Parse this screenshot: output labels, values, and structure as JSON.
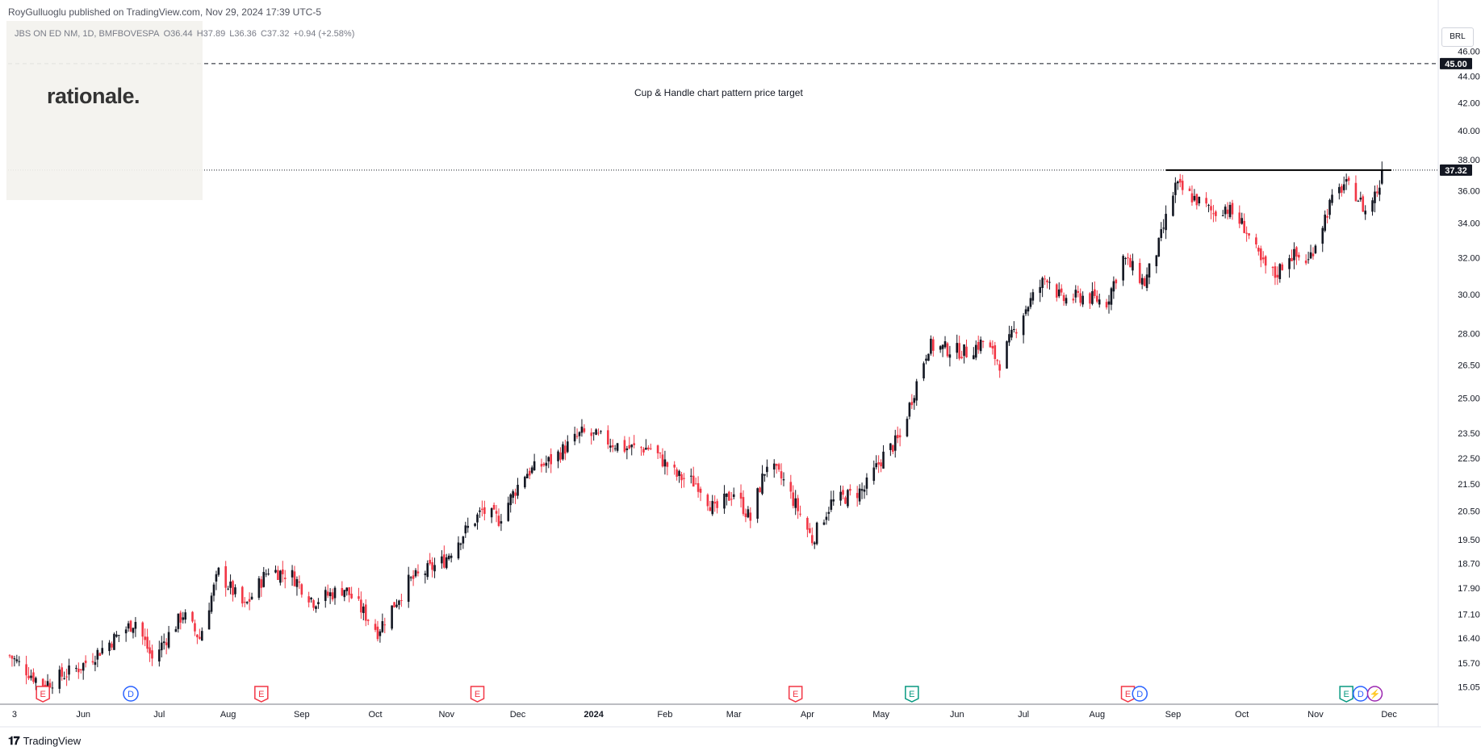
{
  "header": {
    "published": "RoyGulluoglu published on TradingView.com, Nov 29, 2024 17:39 UTC-5",
    "symbol": "JBS ON ED NM, 1D, BMFBOVESPA",
    "open": "O36.44",
    "high": "H37.89",
    "low": "L36.36",
    "close": "C37.32",
    "change": "+0.94 (+2.58%)"
  },
  "overlay": {
    "logo_text": "rationale."
  },
  "currency": "BRL",
  "annotation": "Cup & Handle chart pattern price target",
  "footer": {
    "brand": "TradingView"
  },
  "colors": {
    "up": "#131722",
    "down": "#f23645",
    "label_bg": "#131722",
    "event_earnings": "#f23645",
    "event_dividend": "#2962ff",
    "event_earnings_green": "#089981"
  },
  "chart_data": {
    "type": "candlestick",
    "y_scale": "log",
    "ylim": [
      14.6,
      48.5
    ],
    "y_ticks": [
      "15.05",
      "15.70",
      "16.40",
      "17.10",
      "17.90",
      "18.70",
      "19.50",
      "20.50",
      "21.50",
      "22.50",
      "23.50",
      "25.00",
      "26.50",
      "28.00",
      "30.00",
      "32.00",
      "34.00",
      "36.00",
      "38.00",
      "40.00",
      "42.00",
      "44.00",
      "46.00"
    ],
    "x_ticks": [
      "3",
      "Jun",
      "Jul",
      "Aug",
      "Sep",
      "Oct",
      "Nov",
      "Dec",
      "2024",
      "Feb",
      "Mar",
      "Apr",
      "May",
      "Jun",
      "Jul",
      "Aug",
      "Sep",
      "Oct",
      "Nov",
      "Dec"
    ],
    "target_price": "45.00",
    "current_price": "37.32",
    "resistance": 37.32,
    "events": [
      {
        "label": "E",
        "kind": "earnings"
      },
      {
        "label": "D",
        "kind": "dividend"
      },
      {
        "label": "E",
        "kind": "earnings"
      },
      {
        "label": "E",
        "kind": "earnings"
      },
      {
        "label": "E",
        "kind": "earnings"
      },
      {
        "label": "E",
        "kind": "earnings_green"
      },
      {
        "label": "E",
        "kind": "earnings"
      },
      {
        "label": "D",
        "kind": "dividend"
      },
      {
        "label": "E",
        "kind": "earnings_green"
      },
      {
        "label": "D",
        "kind": "dividend"
      },
      {
        "label": "⚡",
        "kind": "split"
      }
    ],
    "price_path": [
      [
        "2023-05-01",
        15.9
      ],
      [
        "2023-05-15",
        15.1
      ],
      [
        "2023-05-31",
        15.6
      ],
      [
        "2023-06-09",
        16.1
      ],
      [
        "2023-06-23",
        16.9
      ],
      [
        "2023-06-30",
        15.8
      ],
      [
        "2023-07-13",
        17.1
      ],
      [
        "2023-07-20",
        16.4
      ],
      [
        "2023-07-28",
        18.4
      ],
      [
        "2023-08-08",
        17.3
      ],
      [
        "2023-08-18",
        18.5
      ],
      [
        "2023-08-28",
        18.3
      ],
      [
        "2023-09-06",
        17.5
      ],
      [
        "2023-09-19",
        17.9
      ],
      [
        "2023-10-03",
        16.6
      ],
      [
        "2023-10-16",
        18.1
      ],
      [
        "2023-10-31",
        18.8
      ],
      [
        "2023-11-07",
        19.6
      ],
      [
        "2023-11-16",
        20.5
      ],
      [
        "2023-11-23",
        20.2
      ],
      [
        "2023-12-04",
        21.9
      ],
      [
        "2023-12-15",
        22.4
      ],
      [
        "2023-12-28",
        23.5
      ],
      [
        "2024-01-05",
        23.3
      ],
      [
        "2024-01-15",
        22.9
      ],
      [
        "2024-01-26",
        22.9
      ],
      [
        "2024-02-06",
        21.8
      ],
      [
        "2024-02-15",
        21.5
      ],
      [
        "2024-02-22",
        20.5
      ],
      [
        "2024-03-01",
        21.2
      ],
      [
        "2024-03-08",
        20.2
      ],
      [
        "2024-03-15",
        22.3
      ],
      [
        "2024-03-22",
        21.6
      ],
      [
        "2024-04-03",
        19.5
      ],
      [
        "2024-04-11",
        20.8
      ],
      [
        "2024-04-25",
        21.3
      ],
      [
        "2024-05-03",
        22.6
      ],
      [
        "2024-05-10",
        23.3
      ],
      [
        "2024-05-15",
        25.0
      ],
      [
        "2024-05-22",
        27.4
      ],
      [
        "2024-06-07",
        27.1
      ],
      [
        "2024-06-14",
        27.6
      ],
      [
        "2024-06-21",
        26.6
      ],
      [
        "2024-07-01",
        29.1
      ],
      [
        "2024-07-11",
        31.0
      ],
      [
        "2024-07-17",
        29.7
      ],
      [
        "2024-07-26",
        29.9
      ],
      [
        "2024-08-05",
        29.6
      ],
      [
        "2024-08-12",
        32.0
      ],
      [
        "2024-08-21",
        30.6
      ],
      [
        "2024-08-27",
        32.7
      ],
      [
        "2024-09-03",
        36.3
      ],
      [
        "2024-09-12",
        35.4
      ],
      [
        "2024-09-19",
        34.6
      ],
      [
        "2024-09-24",
        35.0
      ],
      [
        "2024-10-02",
        33.8
      ],
      [
        "2024-10-09",
        31.7
      ],
      [
        "2024-10-15",
        31.0
      ],
      [
        "2024-10-21",
        32.2
      ],
      [
        "2024-10-29",
        31.8
      ],
      [
        "2024-11-07",
        35.1
      ],
      [
        "2024-11-13",
        36.4
      ],
      [
        "2024-11-18",
        35.8
      ],
      [
        "2024-11-22",
        34.7
      ],
      [
        "2024-11-28",
        36.3
      ],
      [
        "2024-11-29",
        37.32
      ]
    ]
  }
}
